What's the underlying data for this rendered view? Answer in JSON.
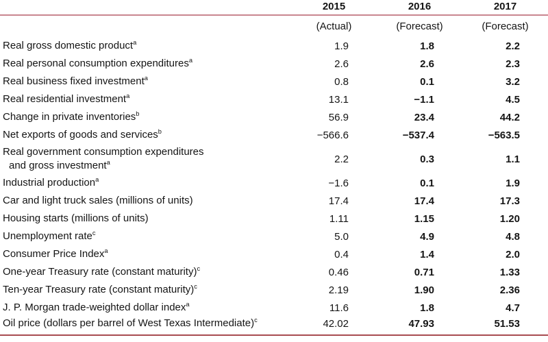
{
  "colors": {
    "rule_top": "#c9858f",
    "rule_bottom": "#a84b50",
    "text": "#141414"
  },
  "table": {
    "columns": [
      "2015",
      "2016",
      "2017"
    ],
    "subcolumns": [
      "(Actual)",
      "(Forecast)",
      "(Forecast)"
    ],
    "rows": [
      {
        "label": "Real gross domestic product",
        "sup": "a",
        "values": [
          "1.9",
          "1.8",
          "2.2"
        ]
      },
      {
        "label": "Real personal consumption expenditures",
        "sup": "a",
        "values": [
          "2.6",
          "2.6",
          "2.3"
        ]
      },
      {
        "label": "Real business fixed investment",
        "sup": "a",
        "values": [
          "0.8",
          "0.1",
          "3.2"
        ]
      },
      {
        "label": "Real residential investment",
        "sup": "a",
        "values": [
          "13.1",
          "−1.1",
          "4.5"
        ]
      },
      {
        "label": "Change in private inventories",
        "sup": "b",
        "values": [
          "56.9",
          "23.4",
          "44.2"
        ]
      },
      {
        "label": "Net exports of goods and services",
        "sup": "b",
        "values": [
          "−566.6",
          "−537.4",
          "−563.5"
        ]
      },
      {
        "label": "Real government consumption expenditures",
        "label2": "and gross investment",
        "sup": "a",
        "values": [
          "2.2",
          "0.3",
          "1.1"
        ]
      },
      {
        "label": "Industrial production",
        "sup": "a",
        "values": [
          "−1.6",
          "0.1",
          "1.9"
        ]
      },
      {
        "label": "Car and light truck sales (millions of units)",
        "sup": "",
        "values": [
          "17.4",
          "17.4",
          "17.3"
        ]
      },
      {
        "label": "Housing starts (millions of units)",
        "sup": "",
        "values": [
          "1.11",
          "1.15",
          "1.20"
        ]
      },
      {
        "label": "Unemployment rate",
        "sup": "c",
        "values": [
          "5.0",
          "4.9",
          "4.8"
        ]
      },
      {
        "label": "Consumer Price Index",
        "sup": "a",
        "values": [
          "0.4",
          "1.4",
          "2.0"
        ]
      },
      {
        "label": "One-year Treasury rate (constant maturity)",
        "sup": "c",
        "values": [
          "0.46",
          "0.71",
          "1.33"
        ]
      },
      {
        "label": "Ten-year Treasury rate (constant maturity)",
        "sup": "c",
        "values": [
          "2.19",
          "1.90",
          "2.36"
        ]
      },
      {
        "label": "J. P. Morgan trade-weighted dollar index",
        "sup": "a",
        "values": [
          "11.6",
          "1.8",
          "4.7"
        ]
      },
      {
        "label": "Oil price (dollars per barrel of West Texas Intermediate)",
        "sup": "c",
        "values": [
          "42.02",
          "47.93",
          "51.53"
        ]
      }
    ]
  }
}
